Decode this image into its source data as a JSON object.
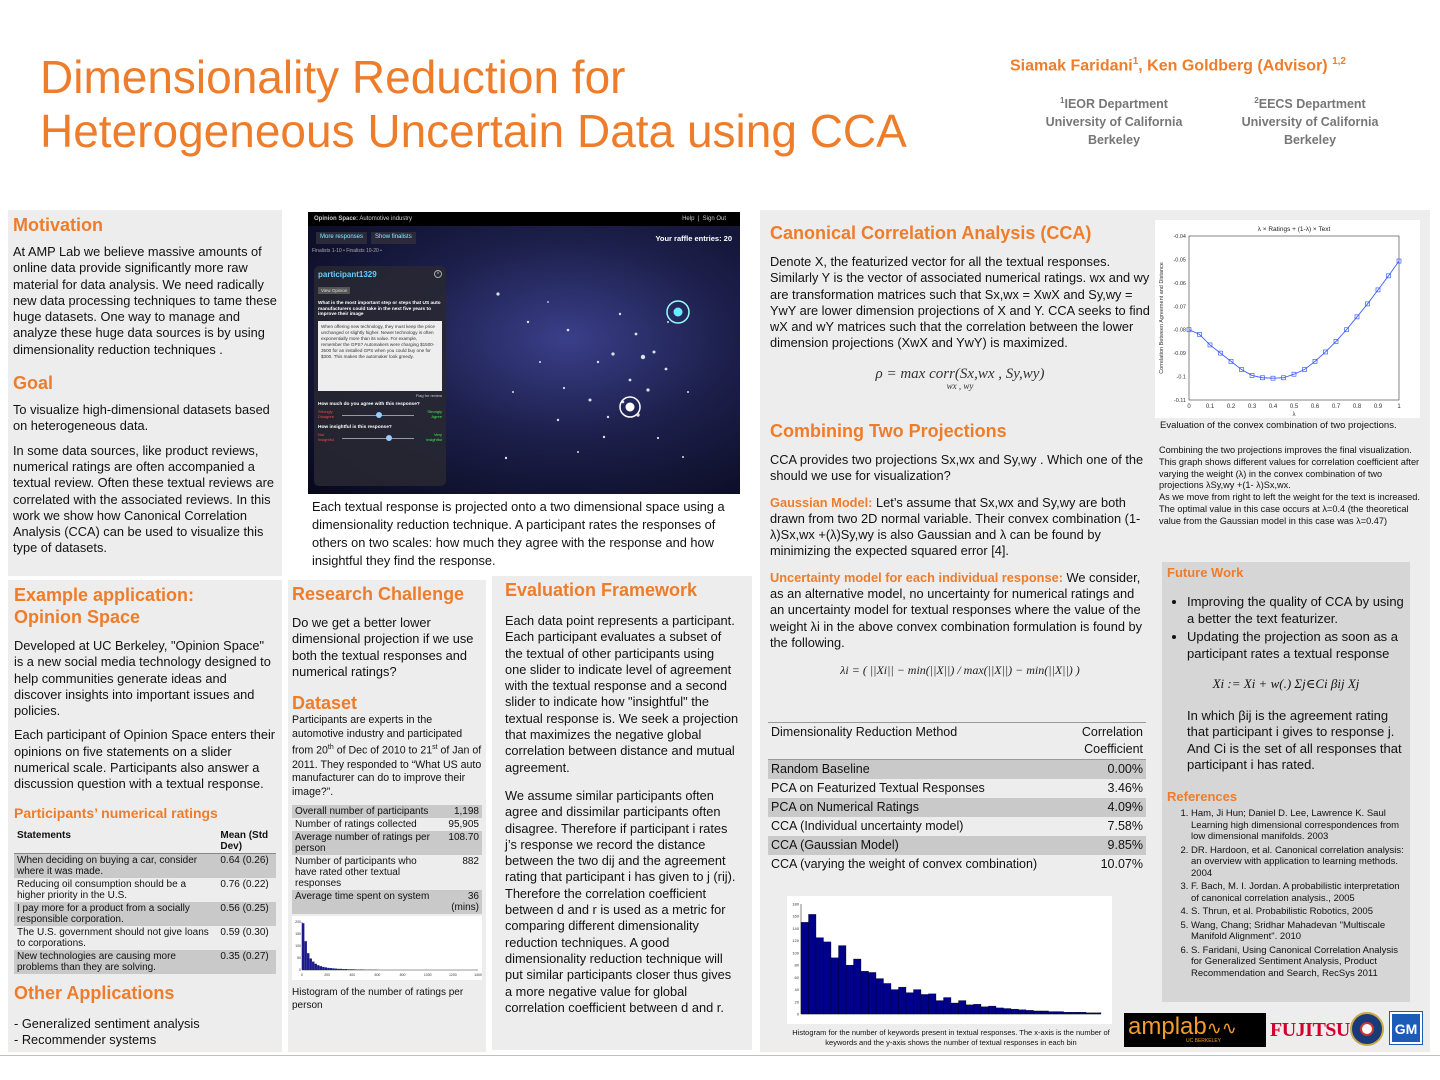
{
  "header": {
    "title_line1": "Dimensionality Reduction for",
    "title_line2": "Heterogeneous Uncertain Data using CCA",
    "author1": "Siamak Faridani",
    "author1_sup": "1",
    "author_sep": ", Ken Goldberg (Advisor) ",
    "author2_sup": "1,2",
    "dept1_sup": "1",
    "dept1_line1": "IEOR Department",
    "dept1_line2": "University of California",
    "dept1_line3": "Berkeley",
    "dept2_sup": "2",
    "dept2_line1": "EECS Department",
    "dept2_line2": "University of California",
    "dept2_line3": "Berkeley"
  },
  "motivation": {
    "title": "Motivation",
    "text": "At AMP Lab we believe massive amounts of online data provide significantly more raw material for data analysis. We need radically new data processing techniques to tame these huge datasets. One way to manage and analyze these huge data sources is by using dimensionality reduction techniques ."
  },
  "goal": {
    "title": "Goal",
    "text1": "To visualize high-dimensional datasets based on heterogeneous data.",
    "text2": "In some data sources, like product reviews, numerical ratings are often accompanied a textual review. Often these textual reviews are correlated with the associated reviews. In this work we show how Canonical Correlation Analysis (CCA) can be used to visualize this type of datasets."
  },
  "screenshot": {
    "app_title": "Opinion Space:",
    "app_sub": "Automotive industry",
    "help": "Help",
    "signout": "Sign Out",
    "tab1": "More responses",
    "tab2": "Show finalists",
    "raffle": "Your raffle entries: 20",
    "finalists": "Finalists 1-10 • Finalists 10-20 •",
    "participant": "participant1329",
    "view_opinion": "View Opinion",
    "question": "What is the most important step or steps that US auto manufacturers could take in the next five years to improve their image",
    "response": "When offering new technology, they must keep the price unchanged or slightly higher. Newer technology is often exponentially more than its value. For example, remember the GPS? Automakers were charging $1500-3500 for an installed GPS when you could buy one for $300. This makes the automaker look greedy.",
    "flag": "Flag for review",
    "agree_q": "How much do you agree with this response?",
    "strongly_disagree": "Strongly Disagree",
    "strongly_agree": "Strongly Agree",
    "insight_q": "How insightful is this response?",
    "not_insightful": "Not insightful",
    "very_insightful": "Very insightful",
    "caption": "Each textual response is projected onto a two dimensional space using a dimensionality reduction technique. A participant rates the responses of others on two scales: how much they agree with the response and how insightful they find the response."
  },
  "example": {
    "title_line1": "Example application:",
    "title_line2": "Opinion Space",
    "text1": "Developed at UC Berkeley, \"Opinion Space\" is a new social media technology designed to help communities generate ideas and discover insights into important issues and policies.",
    "text2": "Each participant of Opinion Space enters their opinions on five statements on a slider numerical scale. Participants also answer a discussion question with a textual response.",
    "ratings_title": "Participants’ numerical ratings",
    "col1": "Statements",
    "col2": "Mean (Std Dev)",
    "rows": [
      {
        "s": "When deciding on buying a car, consider where it was made.",
        "v": "0.64 (0.26)"
      },
      {
        "s": "Reducing oil consumption should be a higher priority in the U.S.",
        "v": "0.76 (0.22)"
      },
      {
        "s": "I pay more for a product from a socially responsible corporation.",
        "v": "0.56 (0.25)"
      },
      {
        "s": "The U.S. government should not give loans to corporations.",
        "v": "0.59 (0.30)"
      },
      {
        "s": "New technologies are causing more problems than they are solving.",
        "v": "0.35 (0.27)"
      }
    ]
  },
  "other": {
    "title": "Other Applications",
    "item1": "- Generalized sentiment analysis",
    "item2": "- Recommender systems"
  },
  "research": {
    "title": "Research Challenge",
    "text": "Do we get a better lower dimensional projection if we use both the textual responses and numerical ratings?"
  },
  "dataset": {
    "title": "Dataset",
    "text_a": "Participants are experts in the automotive industry and participated from 20",
    "sup1": "th",
    "text_b": " of Dec of 2010 to 21",
    "sup2": "st",
    "text_c": " of Jan of 2011. They responded to “What US auto manufacturer can do to improve their image?”.",
    "stats": [
      {
        "k": "Overall number of participants",
        "v": "1,198"
      },
      {
        "k": "Number of ratings collected",
        "v": "95,905"
      },
      {
        "k": "Average number of ratings per person",
        "v": "108.70"
      },
      {
        "k": "Number of participants who have rated other textual responses",
        "v": "882"
      },
      {
        "k": "Average time spent on system",
        "v": "36 (mins)"
      }
    ],
    "hist_caption": "Histogram of the number of ratings per person"
  },
  "hist_small": {
    "x_ticks": [
      "0",
      "200",
      "400",
      "600",
      "800",
      "1000",
      "1200",
      "1400"
    ],
    "y_ticks": [
      "0",
      "50",
      "100",
      "150",
      "200"
    ],
    "values": [
      195,
      120,
      70,
      48,
      35,
      26,
      20,
      16,
      13,
      11,
      9,
      8,
      7,
      6,
      5,
      5,
      4,
      4,
      3,
      3,
      3,
      2,
      2,
      2,
      2,
      1,
      1,
      1,
      1,
      1
    ]
  },
  "evaluation": {
    "title": "Evaluation Framework",
    "text1": "Each data point represents a participant. Each participant evaluates a subset of the textual of other participants using one slider to indicate level of agreement with the textual response and a second slider to indicate how \"insightful\" the textual response is.  We seek a projection that maximizes the negative global correlation between distance and mutual agreement.",
    "text2": "We assume similar participants often agree and dissimilar participants often disagree. Therefore if participant i rates j’s response we record the distance between the two dij and the agreement rating that participant i has given to j (rij). Therefore the correlation coefficient between d and r is used as a metric for comparing different dimensionality reduction techniques. A good dimensionality reduction technique will put similar participants closer thus gives a more negative value for global correlation coefficient between d and r."
  },
  "cca": {
    "title": "Canonical Correlation Analysis (CCA)",
    "text": "Denote X, the featurized vector for all the textual responses. Similarly Y is the vector of associated numerical ratings. wx and wy are transformation matrices such that Sx,wx = XwX and Sy,wy = YwY are lower dimension projections of X and Y. CCA seeks to find wX and wY matrices such that the correlation between the lower dimension projections (XwX and YwY) is maximized.",
    "formula": "ρ  =  max corr(Sx,wx , Sy,wy)",
    "formula_sub": "wx , wy"
  },
  "combining": {
    "title": "Combining Two Projections",
    "text": "CCA provides two projections Sx,wx and Sy,wy . Which one of the should we use for visualization?",
    "gauss_label": "Gaussian Model:",
    "gauss_text": " Let’s assume that Sx,wx and Sy,wy are both drawn from two 2D normal variable. Their convex combination (1-λ)Sx,wx +(λ)Sy,wy is also Gaussian and λ can be found by minimizing the expected squared error [4].",
    "unc_label": "Uncertainty model for each individual response:",
    "unc_text": " We consider, as an alternative model, no uncertainty for numerical ratings and an uncertainty model for textual responses where the value of the weight λi  in the above convex combination formulation is found by the following.",
    "lambda_formula": "λi = ( ||Xi|| − min(||X||) / max(||X||) − min(||X||) )"
  },
  "results": {
    "col1": "Dimensionality Reduction Method",
    "col2": "Correlation Coefficient",
    "rows": [
      {
        "m": "Random Baseline",
        "v": "0.00%"
      },
      {
        "m": "PCA on Featurized Textual Responses",
        "v": "3.46%"
      },
      {
        "m": "PCA on Numerical Ratings",
        "v": "4.09%"
      },
      {
        "m": "CCA (Individual uncertainty model)",
        "v": "7.58%"
      },
      {
        "m": "CCA (Gaussian Model)",
        "v": "9.85%"
      },
      {
        "m": "CCA (varying the weight of convex combination)",
        "v": "10.07%"
      }
    ]
  },
  "hist_keywords": {
    "y_ticks": [
      "0",
      "20",
      "40",
      "60",
      "80",
      "100",
      "120",
      "140",
      "160",
      "180"
    ],
    "values": [
      150,
      163,
      125,
      118,
      92,
      112,
      80,
      90,
      70,
      68,
      58,
      50,
      40,
      44,
      35,
      40,
      32,
      33,
      22,
      27,
      18,
      22,
      15,
      16,
      12,
      13,
      10,
      9,
      8,
      7,
      6,
      5,
      5,
      4,
      4,
      3,
      3,
      3,
      2,
      2
    ],
    "caption": "Histogram for the number of keywords present in textual responses. The x-axis is the number of keywords and the y-axis shows the number of textual responses in each bin"
  },
  "line_chart": {
    "title": "λ × Ratings + (1-λ) × Text",
    "ylabel": "Correlation Between Agreement and Distance",
    "xlabel": "λ",
    "x_ticks": [
      "0",
      "0.1",
      "0.2",
      "0.3",
      "0.4",
      "0.5",
      "0.6",
      "0.7",
      "0.8",
      "0.9",
      "1"
    ],
    "y_ticks": [
      "-0.04",
      "-0.05",
      "-0.06",
      "-0.07",
      "-0.08",
      "-0.09",
      "-0.1",
      "-0.11"
    ],
    "caption": "Evaluation of the convex combination of two projections.",
    "desc": "Combining the two projections improves the final visualization. This graph shows different values for correlation coefficient after varying the weight (λ) in the convex combination of two projections λSy,wy +(1- λ)Sx,wx.",
    "desc2": "As we move from right to left the weight for the text is increased. The optimal value in this case occurs at λ=0.4 (the theoretical value from the Gaussian model in this case was λ=0.47)"
  },
  "chart_data": {
    "type": "line",
    "title": "λ × Ratings + (1-λ) × Text",
    "xlabel": "λ",
    "ylabel": "Correlation Between Agreement and Distance",
    "xlim": [
      0,
      1
    ],
    "ylim": [
      -0.11,
      -0.04
    ],
    "x": [
      0,
      0.05,
      0.1,
      0.15,
      0.2,
      0.25,
      0.3,
      0.35,
      0.4,
      0.45,
      0.5,
      0.55,
      0.6,
      0.65,
      0.7,
      0.75,
      0.8,
      0.85,
      0.9,
      0.95,
      1.0
    ],
    "y": [
      -0.08,
      -0.082,
      -0.0865,
      -0.09,
      -0.0935,
      -0.097,
      -0.0995,
      -0.1005,
      -0.1007,
      -0.1005,
      -0.099,
      -0.097,
      -0.0935,
      -0.0895,
      -0.085,
      -0.08,
      -0.0745,
      -0.069,
      -0.063,
      -0.057,
      -0.0507
    ]
  },
  "future": {
    "title": "Future Work",
    "item1": "Improving the quality of CCA by using a better the text featurizer.",
    "item2": "Updating the projection as soon as a participant rates a textual response",
    "formula": "Xi := Xi + w(.) Σj∈Ci βij Xj",
    "text": "In which βij is the agreement rating that participant i gives to response j. And Ci is the set of all responses that participant i has rated."
  },
  "references": {
    "title": "References",
    "items": [
      "Ham, Ji Hun; Daniel D. Lee, Lawrence K. Saul Learning high dimensional correspondences from low dimensional manifolds. 2003",
      "DR.  Hardoon, et al. Canonical correlation analysis: an overview with application to learning methods. 2004",
      "F. Bach, M. I. Jordan. A probabilistic interpretation of canonical correlation analysis., 2005",
      "S. Thrun, et al. Probabilistic Robotics, 2005",
      "Wang, Chang; Sridhar Mahadevan \"Multiscale Manifold Alignment\". 2010",
      "S. Faridani, Using Canonical Correlation Analysis for Generalized Sentiment Analysis, Product Recommendation and Search, RecSys 2011"
    ]
  },
  "logos": {
    "amplab": "amplab",
    "amplab_sub": "UC BERKELEY",
    "fujitsu": "FUJITSU",
    "gm": "GM"
  }
}
